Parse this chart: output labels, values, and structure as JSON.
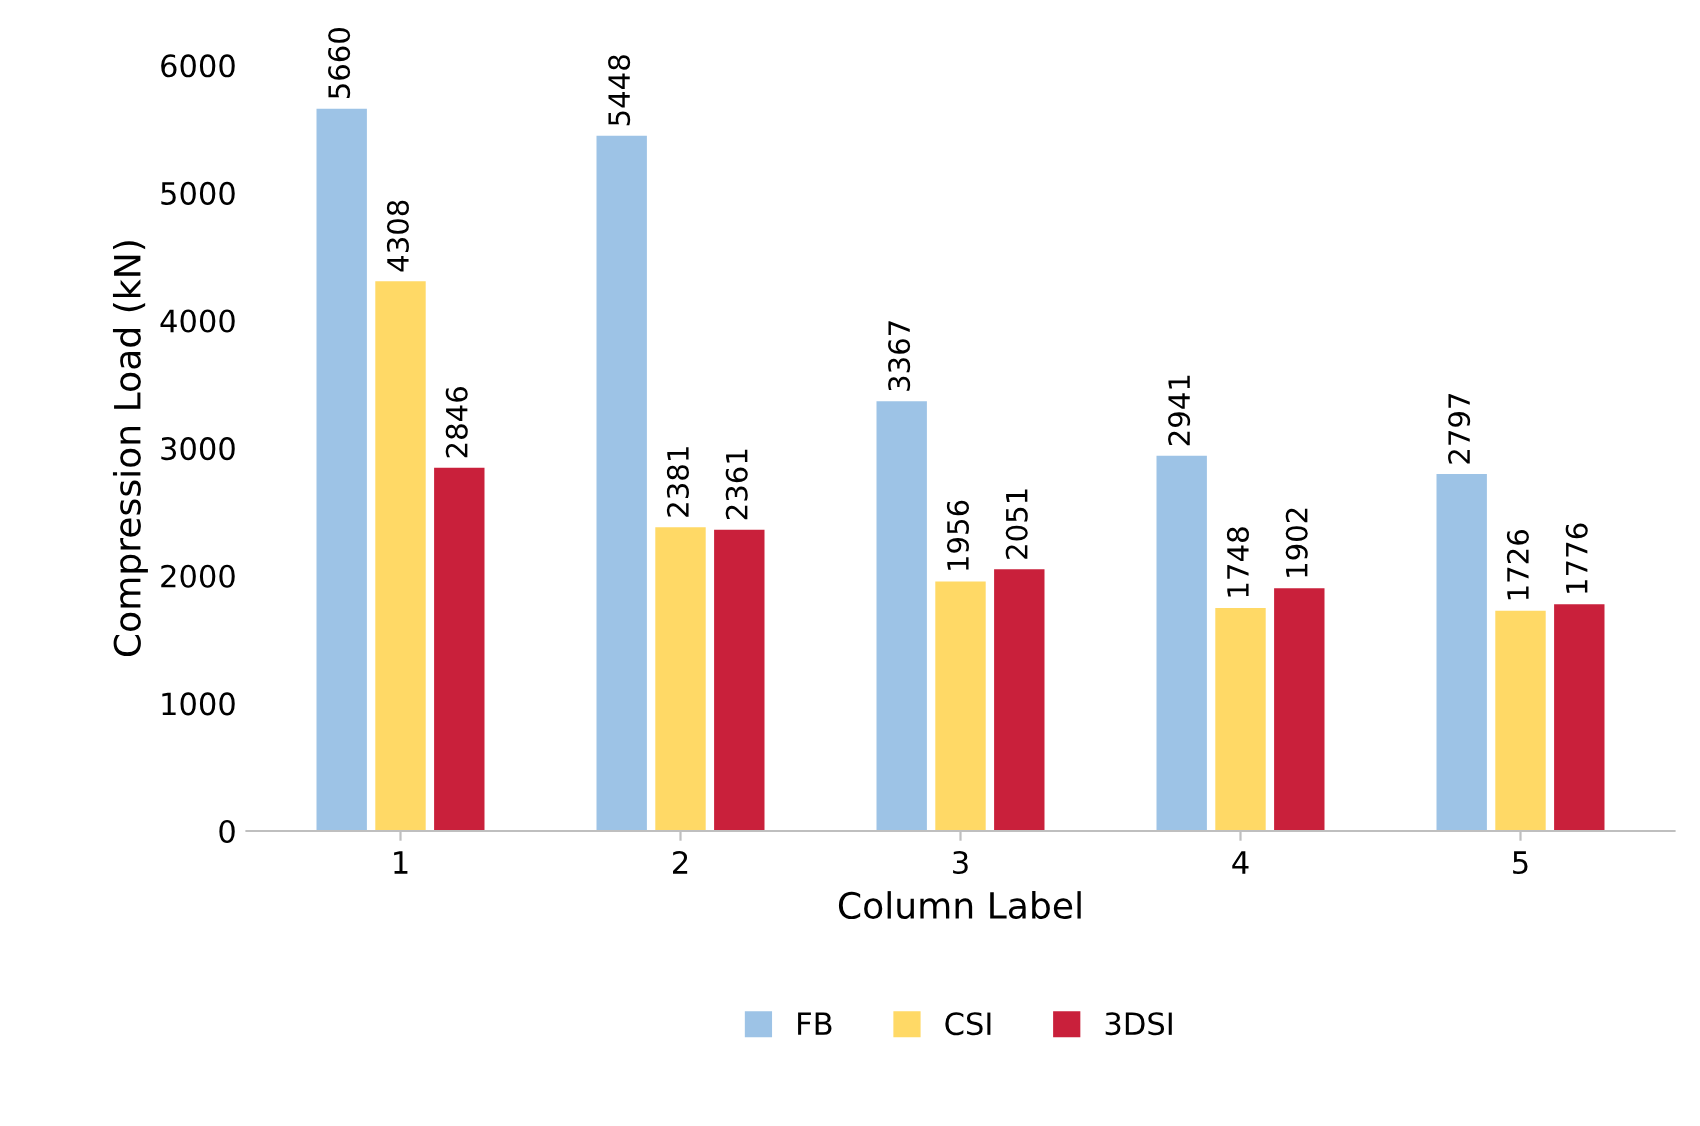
{
  "chart_data": {
    "type": "bar",
    "xlabel": "Column Label",
    "ylabel": "Compression Load (kN)",
    "categories": [
      "1",
      "2",
      "3",
      "4",
      "5"
    ],
    "series": [
      {
        "name": "FB",
        "color": "#9dc3e6",
        "values": [
          5660,
          5448,
          3367,
          2941,
          2797
        ]
      },
      {
        "name": "CSI",
        "color": "#ffd966",
        "values": [
          4308,
          2381,
          1956,
          1748,
          1726
        ]
      },
      {
        "name": "3DSI",
        "color": "#c9203b",
        "values": [
          2846,
          2361,
          2051,
          1902,
          1776
        ]
      }
    ],
    "ylim": [
      0,
      6000
    ],
    "yticks": [
      0,
      1000,
      2000,
      3000,
      4000,
      5000,
      6000
    ],
    "data_labels": true,
    "grid": false,
    "legend": "bottom"
  }
}
